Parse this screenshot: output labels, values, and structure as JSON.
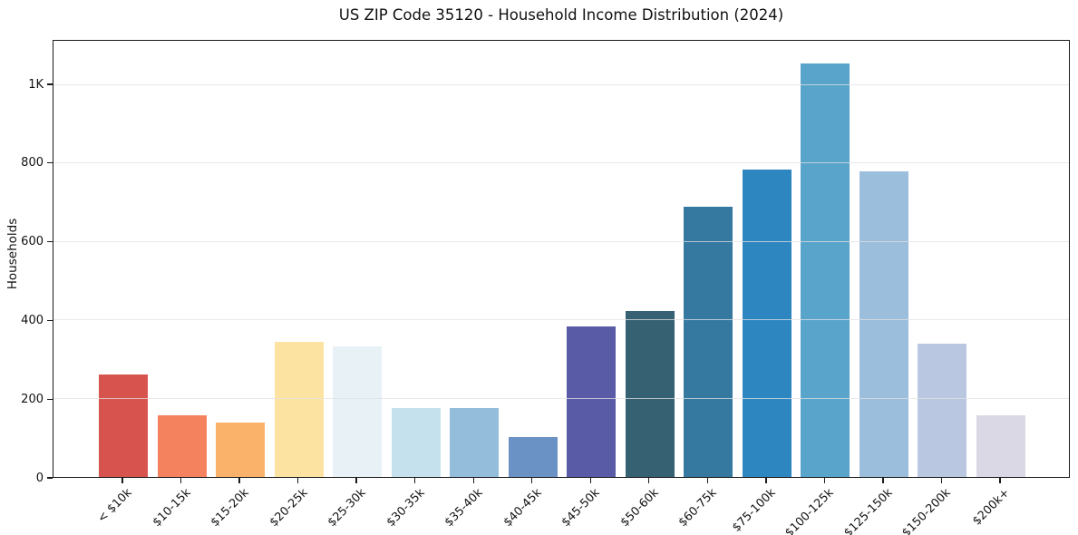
{
  "figure": {
    "background": "#ffffff"
  },
  "chart_data": {
    "type": "bar",
    "title": "US ZIP Code 35120 - Household Income Distribution (2024)",
    "xlabel": "",
    "ylabel": "Households",
    "categories": [
      "< $10k",
      "$10-15k",
      "$15-20k",
      "$20-25k",
      "$25-30k",
      "$30-35k",
      "$35-40k",
      "$40-45k",
      "$45-50k",
      "$50-60k",
      "$60-75k",
      "$75-100k",
      "$100-125k",
      "$125-150k",
      "$150-200k",
      "$200k+"
    ],
    "values": [
      262,
      157,
      138,
      344,
      334,
      176,
      176,
      102,
      385,
      424,
      690,
      785,
      1056,
      780,
      341,
      157
    ],
    "bar_colors": [
      "#d6534e",
      "#f4825f",
      "#fab169",
      "#fde3a2",
      "#e8f1f5",
      "#c5e1ee",
      "#94bddb",
      "#6b92c4",
      "#5a5ba6",
      "#366173",
      "#3579a1",
      "#2e86c0",
      "#59a4ca",
      "#9cbedd",
      "#b9c8e0",
      "#dad8e5"
    ],
    "ylim": [
      0,
      1113
    ],
    "yticks": [
      {
        "value": 0,
        "label": "0"
      },
      {
        "value": 200,
        "label": "200"
      },
      {
        "value": 400,
        "label": "400"
      },
      {
        "value": 600,
        "label": "600"
      },
      {
        "value": 800,
        "label": "800"
      },
      {
        "value": 1000,
        "label": "1K"
      }
    ],
    "grid": "horizontal-only",
    "legend": "none",
    "text_color": "#111111",
    "grid_color": "#e1e1e1",
    "spine_color": "#1a1a1a"
  }
}
